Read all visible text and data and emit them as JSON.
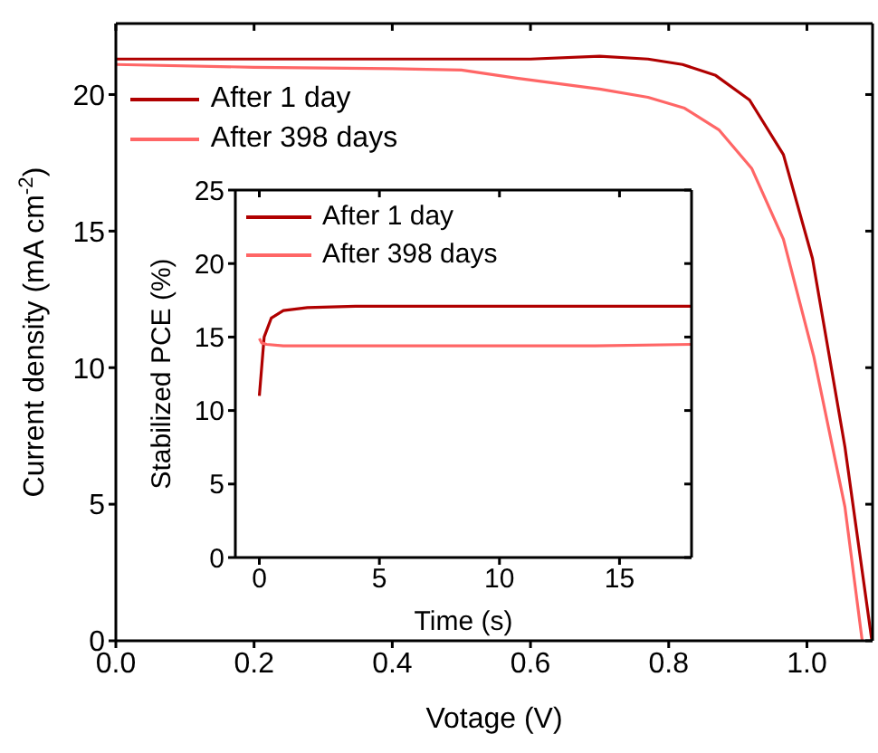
{
  "chart_data": [
    {
      "type": "line",
      "xlabel": "Votage (V)",
      "ylabel": "Current density (mA cm$^{-2}$)",
      "xlim": [
        0,
        1.095
      ],
      "ylim": [
        0,
        22.6
      ],
      "xticks": [
        {
          "value": 0,
          "label": "0.0"
        },
        0.2,
        0.4,
        0.6,
        0.8,
        {
          "value": 1,
          "label": "1.0"
        }
      ],
      "yticks": [
        0,
        5,
        10,
        15,
        20
      ],
      "legend": "top left",
      "marker": "none",
      "line_style": "solid",
      "series": [
        {
          "name": "After 1 day",
          "color": "#b00000",
          "x": [
            0,
            0.2,
            0.4,
            0.6,
            0.7,
            0.77,
            0.82,
            0.868,
            0.917,
            0.966,
            1.008,
            1.055,
            1.094
          ],
          "values": [
            21.3,
            21.3,
            21.3,
            21.3,
            21.4,
            21.3,
            21.1,
            20.7,
            19.8,
            17.8,
            14.0,
            7.1,
            0
          ]
        },
        {
          "name": "After 398 days",
          "color": "#ff6666",
          "x": [
            0,
            0.2,
            0.4,
            0.5,
            0.58,
            0.7,
            0.77,
            0.823,
            0.873,
            0.92,
            0.966,
            1.01,
            1.055,
            1.08
          ],
          "values": [
            21.1,
            21.0,
            20.95,
            20.9,
            20.6,
            20.2,
            19.9,
            19.5,
            18.7,
            17.3,
            14.7,
            10.4,
            4.9,
            0
          ]
        }
      ]
    },
    {
      "type": "line",
      "xlabel": "Time (s)",
      "ylabel": "Stabilized PCE (%)",
      "xlim": [
        -1,
        18
      ],
      "ylim": [
        0,
        25
      ],
      "xticks": [
        0,
        5,
        10,
        15
      ],
      "yticks": [
        0,
        5,
        10,
        15,
        20,
        25
      ],
      "legend": "top left",
      "marker": "none",
      "line_style": "solid",
      "series": [
        {
          "name": "After 1 day",
          "color": "#b00000",
          "x": [
            0,
            0.2,
            0.5,
            1,
            2,
            4,
            8,
            12,
            15,
            18
          ],
          "values": [
            11,
            15,
            16.3,
            16.8,
            17,
            17.1,
            17.1,
            17.1,
            17.1,
            17.1
          ]
        },
        {
          "name": "After 398 days",
          "color": "#ff6666",
          "x": [
            0,
            0.1,
            0.3,
            1,
            3,
            6,
            10,
            14,
            18
          ],
          "values": [
            14.9,
            14.6,
            14.5,
            14.4,
            14.4,
            14.4,
            14.4,
            14.4,
            14.5
          ]
        }
      ]
    }
  ]
}
